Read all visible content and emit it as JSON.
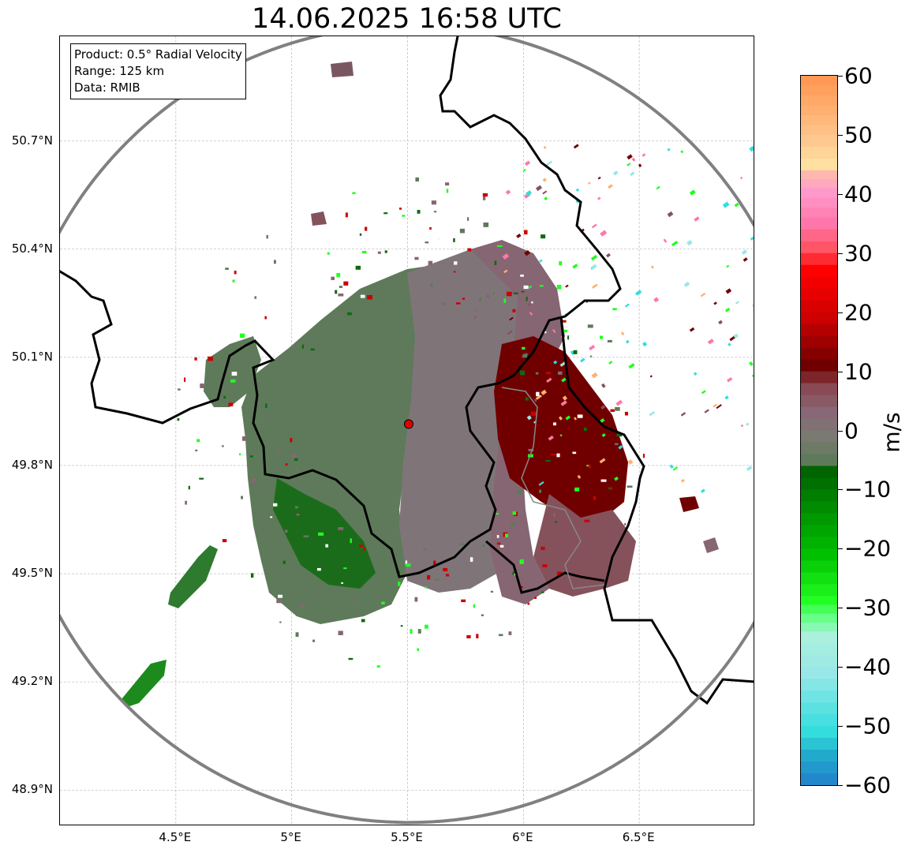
{
  "title": "14.06.2025 16:58 UTC",
  "info_box": {
    "lines": [
      "Product: 0.5° Radial Velocity",
      "Range: 125 km",
      "Data: RMIB"
    ]
  },
  "map": {
    "lon_range": [
      4.0,
      7.0
    ],
    "lat_range": [
      48.8,
      50.99
    ],
    "lat_ticks": [
      {
        "value": 48.9,
        "label": "48.9°N"
      },
      {
        "value": 49.2,
        "label": "49.2°N"
      },
      {
        "value": 49.5,
        "label": "49.5°N"
      },
      {
        "value": 49.8,
        "label": "49.8°N"
      },
      {
        "value": 50.1,
        "label": "50.1°N"
      },
      {
        "value": 50.4,
        "label": "50.4°N"
      },
      {
        "value": 50.7,
        "label": "50.7°N"
      }
    ],
    "lon_ticks": [
      {
        "value": 4.5,
        "label": "4.5°E"
      },
      {
        "value": 5.0,
        "label": "5°E"
      },
      {
        "value": 5.5,
        "label": "5.5°E"
      },
      {
        "value": 6.0,
        "label": "6°E"
      },
      {
        "value": 6.5,
        "label": "6.5°E"
      }
    ],
    "radar_site": {
      "lon": 5.505,
      "lat": 49.915
    },
    "range_ring_color": "#808080",
    "border_color": "#000000",
    "grid": true
  },
  "colorbar": {
    "unit": "m/s",
    "min": -60,
    "max": 60,
    "ticks": [
      {
        "value": 60,
        "label": "60"
      },
      {
        "value": 50,
        "label": "50"
      },
      {
        "value": 40,
        "label": "40"
      },
      {
        "value": 30,
        "label": "30"
      },
      {
        "value": 20,
        "label": "20"
      },
      {
        "value": 10,
        "label": "10"
      },
      {
        "value": 0,
        "label": "0"
      },
      {
        "value": -10,
        "label": "−10"
      },
      {
        "value": -20,
        "label": "−20"
      },
      {
        "value": -30,
        "label": "−30"
      },
      {
        "value": -40,
        "label": "−40"
      },
      {
        "value": -50,
        "label": "−50"
      },
      {
        "value": -60,
        "label": "−60"
      }
    ],
    "stops": [
      {
        "value": 60,
        "color": "#ff9955"
      },
      {
        "value": 55,
        "color": "#ffb070"
      },
      {
        "value": 50,
        "color": "#ffc890"
      },
      {
        "value": 46,
        "color": "#ffe0a0"
      },
      {
        "value": 44,
        "color": "#ffb8b0"
      },
      {
        "value": 41,
        "color": "#ff99cc"
      },
      {
        "value": 36,
        "color": "#ff77aa"
      },
      {
        "value": 32,
        "color": "#ff5566"
      },
      {
        "value": 28,
        "color": "#ff0000"
      },
      {
        "value": 20,
        "color": "#cc0000"
      },
      {
        "value": 12,
        "color": "#700000"
      },
      {
        "value": 8,
        "color": "#8a4a55"
      },
      {
        "value": 4,
        "color": "#886877"
      },
      {
        "value": 0,
        "color": "#7a7a72"
      },
      {
        "value": -4,
        "color": "#5e7a5a"
      },
      {
        "value": -6,
        "color": "#006400"
      },
      {
        "value": -20,
        "color": "#00c000"
      },
      {
        "value": -28,
        "color": "#22ff22"
      },
      {
        "value": -31,
        "color": "#66ff88"
      },
      {
        "value": -34,
        "color": "#aaf0dd"
      },
      {
        "value": -40,
        "color": "#99e8e8"
      },
      {
        "value": -50,
        "color": "#33dddd"
      },
      {
        "value": -54,
        "color": "#22aacc"
      },
      {
        "value": -60,
        "color": "#2277cc"
      }
    ]
  }
}
